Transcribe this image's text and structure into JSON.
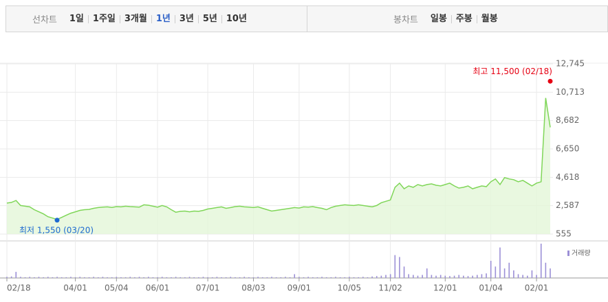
{
  "toolbar": {
    "line_label": "선차트",
    "line_periods": [
      "1일",
      "1주일",
      "3개월",
      "1년",
      "3년",
      "5년",
      "10년"
    ],
    "selected": "1년",
    "candle_label": "봉차트",
    "candle_periods": [
      "일봉",
      "주봉",
      "월봉"
    ]
  },
  "chart_data": {
    "type": "line",
    "color": "#7fd658",
    "area_color": "#e4f6d8",
    "grid": true,
    "categories": [
      "02/18",
      null,
      null,
      null,
      null,
      null,
      null,
      null,
      null,
      null,
      null,
      null,
      null,
      null,
      null,
      "04/01",
      null,
      null,
      null,
      null,
      null,
      null,
      null,
      null,
      "05/04",
      null,
      null,
      null,
      null,
      null,
      null,
      null,
      null,
      "06/01",
      null,
      null,
      null,
      null,
      null,
      null,
      null,
      null,
      null,
      null,
      "07/01",
      null,
      null,
      null,
      null,
      null,
      null,
      null,
      null,
      null,
      "08/03",
      null,
      null,
      null,
      null,
      null,
      null,
      null,
      null,
      null,
      "09/01",
      null,
      null,
      null,
      null,
      null,
      null,
      null,
      null,
      null,
      null,
      "10/05",
      null,
      null,
      null,
      null,
      null,
      null,
      null,
      null,
      "11/02",
      null,
      null,
      null,
      null,
      null,
      null,
      null,
      null,
      null,
      null,
      null,
      "12/01",
      null,
      null,
      null,
      null,
      null,
      null,
      null,
      null,
      null,
      "01/04",
      null,
      null,
      null,
      null,
      null,
      null,
      null,
      null,
      null,
      "02/01",
      null,
      null,
      null
    ],
    "values": [
      2770,
      2820,
      2960,
      2600,
      2550,
      2500,
      2300,
      2150,
      2000,
      1800,
      1700,
      1600,
      1750,
      1900,
      2050,
      2150,
      2250,
      2300,
      2320,
      2400,
      2450,
      2480,
      2500,
      2460,
      2520,
      2500,
      2550,
      2520,
      2500,
      2480,
      2650,
      2620,
      2550,
      2480,
      2600,
      2500,
      2300,
      2120,
      2180,
      2200,
      2150,
      2200,
      2180,
      2250,
      2350,
      2400,
      2450,
      2500,
      2400,
      2450,
      2520,
      2550,
      2500,
      2480,
      2450,
      2500,
      2400,
      2300,
      2200,
      2250,
      2300,
      2350,
      2400,
      2450,
      2420,
      2500,
      2480,
      2520,
      2450,
      2400,
      2300,
      2450,
      2550,
      2600,
      2650,
      2620,
      2600,
      2650,
      2600,
      2550,
      2500,
      2600,
      2800,
      2900,
      3000,
      3900,
      4200,
      3800,
      4000,
      3900,
      4100,
      4000,
      4100,
      4150,
      4050,
      4000,
      4100,
      4200,
      4000,
      3850,
      3900,
      4000,
      3800,
      3900,
      4000,
      3950,
      4300,
      4500,
      4100,
      4600,
      4500,
      4450,
      4300,
      4400,
      4200,
      4000,
      4200,
      4300,
      10300,
      8200
    ],
    "ylim": [
      555,
      12745
    ],
    "yticks": [
      {
        "value": 555,
        "label": "555"
      },
      {
        "value": 2587,
        "label": "2,587"
      },
      {
        "value": 4618,
        "label": "4,618"
      },
      {
        "value": 6650,
        "label": "6,650"
      },
      {
        "value": 8682,
        "label": "8,682"
      },
      {
        "value": 10713,
        "label": "10,713"
      },
      {
        "value": 12745,
        "label": "12,745"
      }
    ],
    "annotations": [
      {
        "text": "최고 11,500 (02/18)",
        "value": 11500,
        "color": "#e60012"
      },
      {
        "text": "최저 1,550 (03/20)",
        "value": 1550,
        "color": "#1d6ad0"
      }
    ],
    "volume": {
      "name": "거래량",
      "color": "#9b8fd6",
      "values": [
        3,
        4,
        16,
        3,
        2,
        3,
        2,
        3,
        2,
        3,
        2,
        3,
        2,
        2,
        3,
        2,
        3,
        2,
        2,
        3,
        2,
        3,
        2,
        2,
        3,
        2,
        2,
        3,
        2,
        3,
        2,
        3,
        2,
        2,
        3,
        2,
        2,
        3,
        2,
        2,
        3,
        2,
        2,
        3,
        2,
        2,
        3,
        2,
        2,
        3,
        2,
        2,
        3,
        2,
        2,
        3,
        2,
        2,
        3,
        2,
        2,
        3,
        2,
        10,
        3,
        2,
        3,
        2,
        2,
        3,
        2,
        2,
        3,
        2,
        2,
        3,
        2,
        2,
        3,
        2,
        4,
        5,
        6,
        8,
        10,
        60,
        55,
        30,
        10,
        8,
        6,
        8,
        25,
        8,
        6,
        8,
        6,
        5,
        6,
        8,
        6,
        5,
        6,
        8,
        10,
        12,
        45,
        30,
        80,
        25,
        40,
        20,
        10,
        8,
        6,
        20,
        8,
        90,
        40,
        25
      ]
    }
  }
}
